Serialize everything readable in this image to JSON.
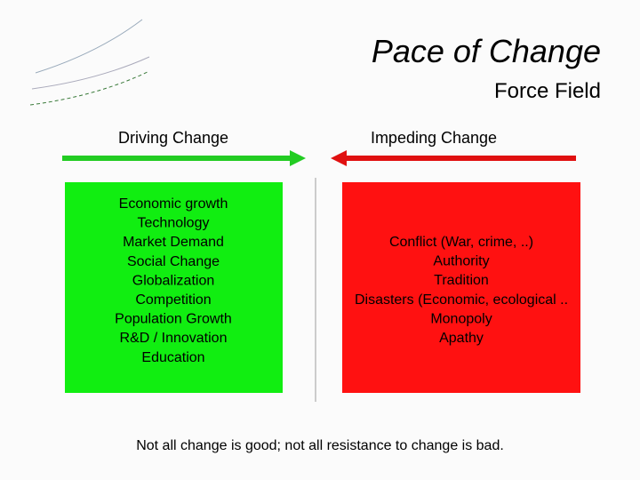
{
  "header": {
    "title": "Pace of Change",
    "subtitle": "Force Field"
  },
  "driving": {
    "heading": "Driving Change",
    "items": [
      "Economic growth",
      "Technology",
      "Market Demand",
      "Social Change",
      "Globalization",
      "Competition",
      "Population Growth",
      "R&D / Innovation",
      "Education"
    ]
  },
  "impeding": {
    "heading": "Impeding Change",
    "items": [
      "Conflict (War, crime, ..)",
      "Authority",
      "Tradition",
      "Disasters (Economic, ecological ..",
      "Monopoly",
      "Apathy"
    ]
  },
  "footer": {
    "note": "Not all change is good; not all resistance to change is bad."
  }
}
